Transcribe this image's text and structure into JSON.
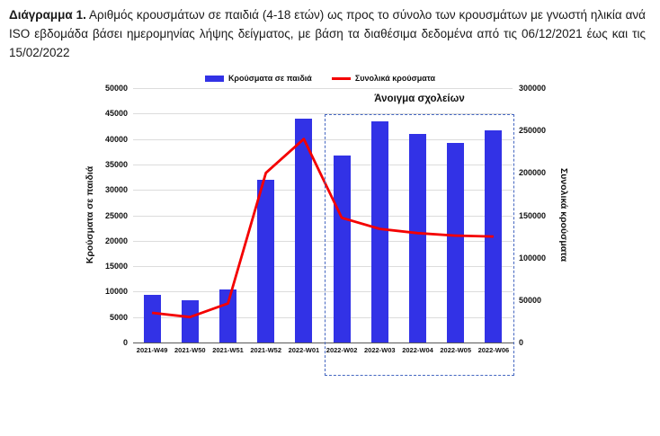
{
  "title": {
    "label": "Διάγραμμα 1.",
    "text": " Αριθμός κρουσμάτων σε παιδιά (4-18 ετών) ως προς το σύνολο των κρουσμάτων με γνωστή ηλικία ανά ISO εβδομάδα βάσει ημερομηνίας λήψης δείγματος, με βάση τα διαθέσιμα δεδομένα από τις 06/12/2021 έως και τις 15/02/2022"
  },
  "chart_data": {
    "type": "bar+line",
    "categories": [
      "2021-W49",
      "2021-W50",
      "2021-W51",
      "2021-W52",
      "2022-W01",
      "2022-W02",
      "2022-W03",
      "2022-W04",
      "2022-W05",
      "2022-W06"
    ],
    "series": [
      {
        "name": "Κρούσματα σε παιδιά",
        "type": "bar",
        "axis": "left",
        "color": "#3232e6",
        "values": [
          9400,
          8400,
          10400,
          32000,
          44000,
          36700,
          43500,
          41000,
          39300,
          41700
        ]
      },
      {
        "name": "Συνολικά κρούσματα",
        "type": "line",
        "axis": "right",
        "color": "#f40000",
        "values": [
          35000,
          30000,
          46000,
          200000,
          240000,
          147000,
          134000,
          129000,
          126000,
          125000
        ]
      }
    ],
    "left_axis": {
      "label": "Κρούσματα σε παιδιά",
      "min": 0,
      "max": 50000,
      "step": 5000
    },
    "right_axis": {
      "label": "Συνολικά κρούσματα",
      "min": 0,
      "max": 300000,
      "step": 50000
    },
    "annotation": {
      "label": "Άνοιγμα σχολείων",
      "box_from_category": "2022-W02",
      "box_to_category": "2022-W06"
    },
    "grid": true,
    "legend_position": "top",
    "colors": {
      "gridline": "#dcdcdc",
      "axis_line": "#595959",
      "annotation_box": "#4466c0"
    }
  }
}
